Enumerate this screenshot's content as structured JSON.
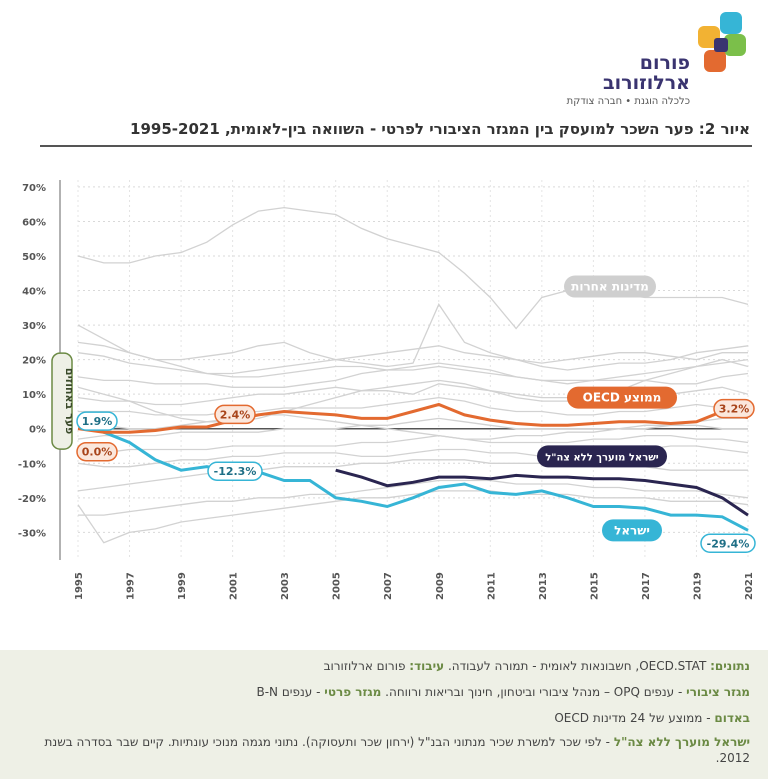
{
  "logo": {
    "name_line1": "פורום",
    "name_line2": "ארלוזורוב",
    "tagline": "כלכלה הוגנת • חברה צודקת"
  },
  "title": "איור 2: פער השכר למועסק בין המגזר הציבורי לפרטי - השוואה בין-לאומית, 1995-2021",
  "chart_data": {
    "type": "line",
    "title": "איור 2: פער השכר למועסק בין המגזר הציבורי לפרטי - השוואה בין-לאומית, 1995-2021",
    "ylabel": "פער באחוזים",
    "xlabel": "",
    "x_ticks": [
      "1995",
      "1997",
      "1999",
      "2001",
      "2003",
      "2005",
      "2007",
      "2009",
      "2011",
      "2013",
      "2015",
      "2017",
      "2019",
      "2021"
    ],
    "y_ticks": [
      "70%",
      "60%",
      "50%",
      "40%",
      "30%",
      "20%",
      "10%",
      "0%",
      "-10%",
      "-20%",
      "-30%"
    ],
    "xlim": [
      1995,
      2021
    ],
    "ylim": [
      -38,
      72
    ],
    "grid": true,
    "series": [
      {
        "name": "ישראל",
        "color": "#36b5d6",
        "x": [
          1995,
          1996,
          1997,
          1998,
          1999,
          2000,
          2001,
          2002,
          2003,
          2004,
          2005,
          2006,
          2007,
          2008,
          2009,
          2010,
          2011,
          2012,
          2013,
          2014,
          2015,
          2016,
          2017,
          2018,
          2019,
          2020,
          2021
        ],
        "y": [
          1.9,
          -1,
          -4,
          -9,
          -12,
          -11,
          -12.3,
          -12.5,
          -15,
          -15,
          -20,
          -21,
          -22.5,
          -20,
          -17,
          -16,
          -18.5,
          -19,
          -18,
          -20,
          -22.5,
          -22.5,
          -23,
          -25,
          -25,
          -25.5,
          -29.4
        ]
      },
      {
        "name": "ממוצע OECD",
        "color": "#e36a30",
        "x": [
          1995,
          1996,
          1997,
          1998,
          1999,
          2000,
          2001,
          2002,
          2003,
          2004,
          2005,
          2006,
          2007,
          2008,
          2009,
          2010,
          2011,
          2012,
          2013,
          2014,
          2015,
          2016,
          2017,
          2018,
          2019,
          2020,
          2021
        ],
        "y": [
          0.0,
          -1,
          -1,
          -0.5,
          0.5,
          0.5,
          2.4,
          4,
          5,
          4.5,
          4,
          3,
          3,
          5,
          7,
          4,
          2.5,
          1.5,
          1,
          1,
          1.5,
          2,
          2,
          1.5,
          2,
          5,
          3.2
        ]
      },
      {
        "name": "ישראל מוערך ללא צה\"ל",
        "color": "#2a2550",
        "x": [
          2005,
          2006,
          2007,
          2008,
          2009,
          2010,
          2011,
          2012,
          2013,
          2014,
          2015,
          2016,
          2017,
          2018,
          2019,
          2020,
          2021
        ],
        "y": [
          -12,
          -14,
          -16.5,
          -15.5,
          -14,
          -14,
          -14.5,
          -13.5,
          -14,
          -14,
          -14.5,
          -14.5,
          -15,
          -16,
          -17,
          -20,
          -25
        ]
      }
    ],
    "background_series": [
      {
        "y": [
          50,
          48,
          48,
          50,
          51,
          54,
          59,
          63,
          64,
          63,
          62,
          58,
          55,
          53,
          51,
          45,
          38,
          29,
          38,
          40,
          40,
          39,
          38,
          38,
          38,
          38,
          36
        ]
      },
      {
        "y": [
          30,
          26,
          22,
          20,
          20,
          21,
          22,
          24,
          25,
          22,
          20,
          19,
          18,
          19,
          36,
          25,
          22,
          20,
          18,
          17,
          18,
          19,
          19,
          20,
          22,
          23,
          24
        ]
      },
      {
        "y": [
          22,
          21,
          19,
          18,
          17,
          16,
          16,
          17,
          18,
          19,
          20,
          21,
          22,
          23,
          24,
          22,
          21,
          20,
          19,
          20,
          21,
          22,
          22,
          21,
          20,
          22,
          22
        ]
      },
      {
        "y": [
          15,
          14,
          14,
          13,
          13,
          13,
          12,
          12,
          12,
          13,
          14,
          16,
          17,
          18,
          19,
          18,
          17,
          15,
          14,
          13,
          14,
          14,
          14,
          13,
          13,
          15,
          16
        ]
      },
      {
        "y": [
          9,
          8,
          8,
          7,
          7,
          8,
          9,
          10,
          10,
          11,
          12,
          11,
          11,
          10,
          13,
          12,
          11,
          10,
          9,
          9,
          9,
          10,
          10,
          10,
          11,
          12,
          10
        ]
      },
      {
        "y": [
          5,
          5,
          5,
          4,
          4,
          4,
          5,
          5,
          6,
          6,
          6,
          6,
          7,
          8,
          9,
          8,
          6,
          5,
          5,
          4,
          4,
          5,
          5,
          6,
          7,
          6,
          5
        ]
      },
      {
        "y": [
          -3,
          -2,
          -2,
          -2,
          -1,
          -1,
          -1,
          -1,
          0,
          0,
          0,
          1,
          1,
          2,
          3,
          2,
          1,
          0,
          0,
          0,
          0,
          0,
          1,
          1,
          1,
          0,
          0
        ]
      },
      {
        "y": [
          -6,
          -7,
          -6,
          -6,
          -6,
          -6,
          -5,
          -5,
          -5,
          -5,
          -5,
          -4,
          -4,
          -3,
          -2,
          -3,
          -4,
          -4,
          -4,
          -4,
          -3,
          -3,
          -2,
          -2,
          -3,
          -3,
          -4
        ]
      },
      {
        "y": [
          -10,
          -11,
          -11,
          -10,
          -9,
          -9,
          -8,
          -8,
          -7,
          -7,
          -7,
          -8,
          -8,
          -7,
          -6,
          -6,
          -7,
          -7,
          -8,
          -8,
          -7,
          -6,
          -6,
          -5,
          -5,
          -6,
          -7
        ]
      },
      {
        "y": [
          -18,
          -17,
          -16,
          -15,
          -14,
          -13,
          -13,
          -12,
          -11,
          -11,
          -11,
          -10,
          -10,
          -9,
          -9,
          -9,
          -10,
          -10,
          -10,
          -10,
          -11,
          -11,
          -11,
          -12,
          -12,
          -12,
          -12
        ]
      },
      {
        "y": [
          -22,
          -33,
          -30,
          -29,
          -27,
          -26,
          -25,
          -24,
          -23,
          -22,
          -21,
          -20,
          -20,
          -19,
          -18,
          -18,
          -18,
          -19,
          -19,
          -19,
          -20,
          -20,
          -20,
          -21,
          -21,
          -21,
          -22
        ]
      },
      {
        "y": [
          -25,
          -25,
          -24,
          -23,
          -22,
          -21,
          -21,
          -20,
          -20,
          -19,
          -19,
          -18,
          -17,
          -16,
          -15,
          -15,
          -15,
          -16,
          -16,
          -16,
          -17,
          -17,
          -18,
          -18,
          -18,
          -19,
          -20
        ]
      },
      {
        "y": [
          12,
          10,
          8,
          5,
          3,
          2,
          2,
          3,
          5,
          7,
          9,
          11,
          12,
          13,
          14,
          13,
          11,
          9,
          8,
          8,
          9,
          11,
          14,
          16,
          18,
          20,
          18
        ]
      },
      {
        "y": [
          25,
          24,
          22,
          20,
          18,
          16,
          15,
          15,
          16,
          17,
          18,
          18,
          17,
          17,
          18,
          17,
          16,
          15,
          14,
          14,
          14,
          15,
          16,
          17,
          18,
          19,
          20
        ]
      },
      {
        "y": [
          2,
          1,
          0,
          0,
          1,
          2,
          3,
          4,
          4,
          3,
          2,
          1,
          0,
          -1,
          -2,
          -3,
          -3,
          -2,
          -2,
          -1,
          -1,
          0,
          0,
          1,
          2,
          3,
          3
        ]
      }
    ],
    "annotations": [
      {
        "text": "1.9%",
        "year": 1995,
        "value": 1.9,
        "style": "israel"
      },
      {
        "text": "0.0%",
        "year": 1995,
        "value": 0.0,
        "style": "oecd"
      },
      {
        "text": "2.4%",
        "year": 2001,
        "value": 2.4,
        "style": "oecd"
      },
      {
        "text": "-12.3%",
        "year": 2001,
        "value": -12.3,
        "style": "israel"
      },
      {
        "text": "3.2%",
        "year": 2021,
        "value": 3.2,
        "style": "oecd"
      },
      {
        "text": "-29.4%",
        "year": 2021,
        "value": -29.4,
        "style": "israel"
      }
    ],
    "series_labels": [
      {
        "text": "מדינות אחרות",
        "style": "gray"
      },
      {
        "text": "ממוצע OECD",
        "style": "oecd"
      },
      {
        "text": "ישראל מוערך ללא צה\"ל",
        "style": "estimate"
      },
      {
        "text": "ישראל",
        "style": "israel"
      }
    ]
  },
  "colors": {
    "israel": "#36b5d6",
    "oecd": "#e36a30",
    "estimate": "#2a2550",
    "others": "#cfcfcf",
    "accent_green": "#6b8a44"
  },
  "footer": {
    "line1_label": "נתונים:",
    "line1_text": "OECD.STAT, חשבונאות לאומית - תמורה לעבודה.",
    "line1_label2": "עיבוד:",
    "line1_text2": "פורום ארלוזורוב",
    "line2_label": "מגזר ציבורי",
    "line2_text": "- ענפים OPQ – מנהל ציבורי וביטחון, חינוך ובריאות ורווחה.",
    "line2_label2": "מגזר פרטי",
    "line2_text2": "- ענפים B-N",
    "line3_label": "באדום",
    "line3_text": "- ממוצע של 24 מדינות OECD",
    "line4_label": "ישראל מוערך ללא צה\"ל",
    "line4_text": "- לפי שכר למשרת שכיר מנתוני הבנ\"ל (ירחון שכר ותעסוקה). נתוני מגמה מנוכי עונתיות. קיים שבר בסדרה בשנת 2012."
  }
}
